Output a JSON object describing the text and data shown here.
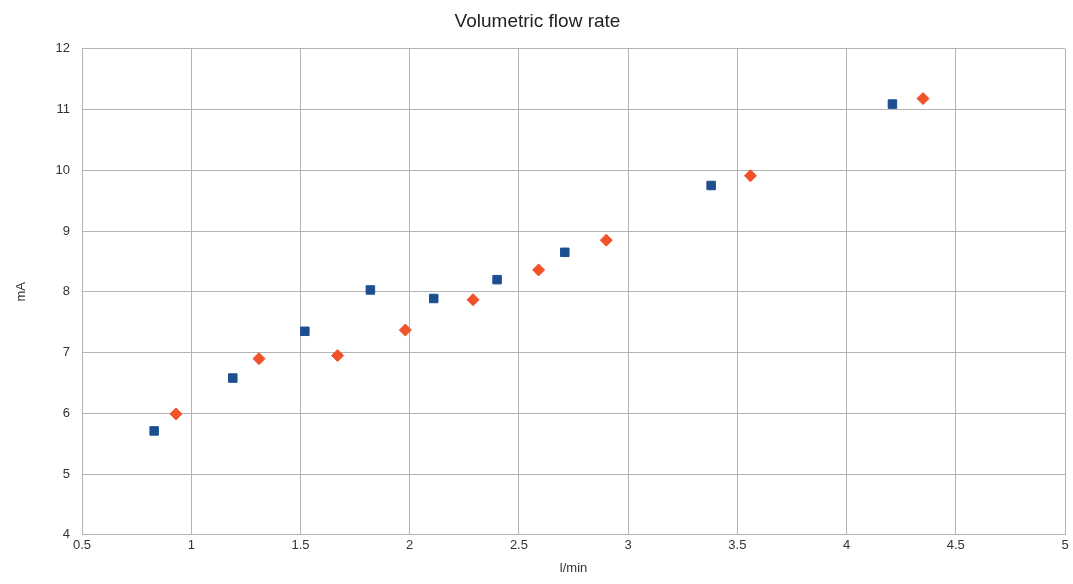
{
  "chart_data": {
    "type": "scatter",
    "title": "Volumetric flow rate",
    "xlabel": "l/min",
    "ylabel": "mA",
    "xlim": [
      0.5,
      5
    ],
    "xticks": [
      0.5,
      1,
      1.5,
      2,
      2.5,
      3,
      3.5,
      4,
      4.5,
      5
    ],
    "ylim": [
      4,
      12
    ],
    "yticks": [
      4,
      5,
      6,
      7,
      8,
      9,
      10,
      11,
      12
    ],
    "grid": true,
    "legend": false,
    "series": [
      {
        "color": "#1c4f8f",
        "marker": "square",
        "x": [
          0.83,
          1.19,
          1.52,
          1.82,
          2.11,
          2.4,
          2.71,
          3.38,
          4.21
        ],
        "values": [
          5.71,
          6.58,
          7.35,
          8.03,
          7.89,
          8.2,
          8.65,
          9.75,
          11.09
        ]
      },
      {
        "color": "#f0522a",
        "marker": "diamond",
        "x": [
          0.93,
          1.31,
          1.67,
          1.98,
          2.29,
          2.59,
          2.9,
          3.56,
          4.35
        ],
        "values": [
          5.99,
          6.9,
          6.95,
          7.37,
          7.87,
          8.36,
          8.85,
          9.91,
          11.18
        ]
      }
    ]
  }
}
